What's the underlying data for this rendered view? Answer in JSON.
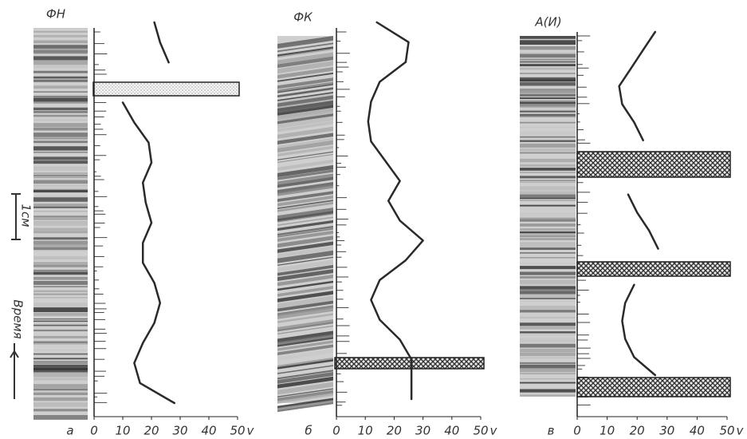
{
  "chart_data": [
    {
      "type": "line",
      "title": "ФН",
      "panel_label": "а",
      "x_label": "v",
      "xlim": [
        0,
        50
      ],
      "xticks": [
        0,
        10,
        20,
        30,
        40,
        50
      ],
      "color": "#2a2a2a",
      "categories": [
        null,
        null,
        null,
        null,
        null,
        null,
        null,
        null,
        null,
        null,
        null,
        null,
        null,
        null,
        null,
        null,
        null,
        null,
        null,
        null
      ],
      "values": [
        21,
        23,
        26,
        null,
        10,
        14,
        19,
        20,
        17,
        18,
        20,
        17,
        17,
        21,
        23,
        21,
        17,
        14,
        16,
        28
      ]
    },
    {
      "type": "line",
      "title": "ФК",
      "panel_label": "б",
      "x_label": "v",
      "xlim": [
        0,
        50
      ],
      "xticks": [
        0,
        10,
        20,
        30,
        40,
        50
      ],
      "color": "#2a2a2a",
      "categories": [
        null,
        null,
        null,
        null,
        null,
        null,
        null,
        null,
        null,
        null,
        null,
        null,
        null,
        null,
        null,
        null,
        null,
        null,
        null,
        null
      ],
      "values": [
        14,
        25,
        24,
        15,
        12,
        11,
        12,
        17,
        22,
        18,
        22,
        30,
        24,
        15,
        12,
        15,
        22,
        26,
        26,
        26
      ]
    },
    {
      "type": "line",
      "title": "А(И)",
      "panel_label": "в",
      "x_label": "v",
      "xlim": [
        0,
        50
      ],
      "xticks": [
        0,
        10,
        20,
        30,
        40,
        50
      ],
      "color": "#2a2a2a",
      "categories": [
        null,
        null,
        null,
        null,
        null,
        null,
        null,
        null,
        null,
        null,
        null,
        null,
        null,
        null,
        null,
        null,
        null,
        null,
        null,
        null
      ],
      "values": [
        26,
        22,
        18,
        14,
        15,
        19,
        22,
        null,
        null,
        17,
        20,
        24,
        27,
        null,
        19,
        16,
        15,
        16,
        19,
        26
      ]
    }
  ],
  "scale_label": "1см",
  "time_label": "Время"
}
